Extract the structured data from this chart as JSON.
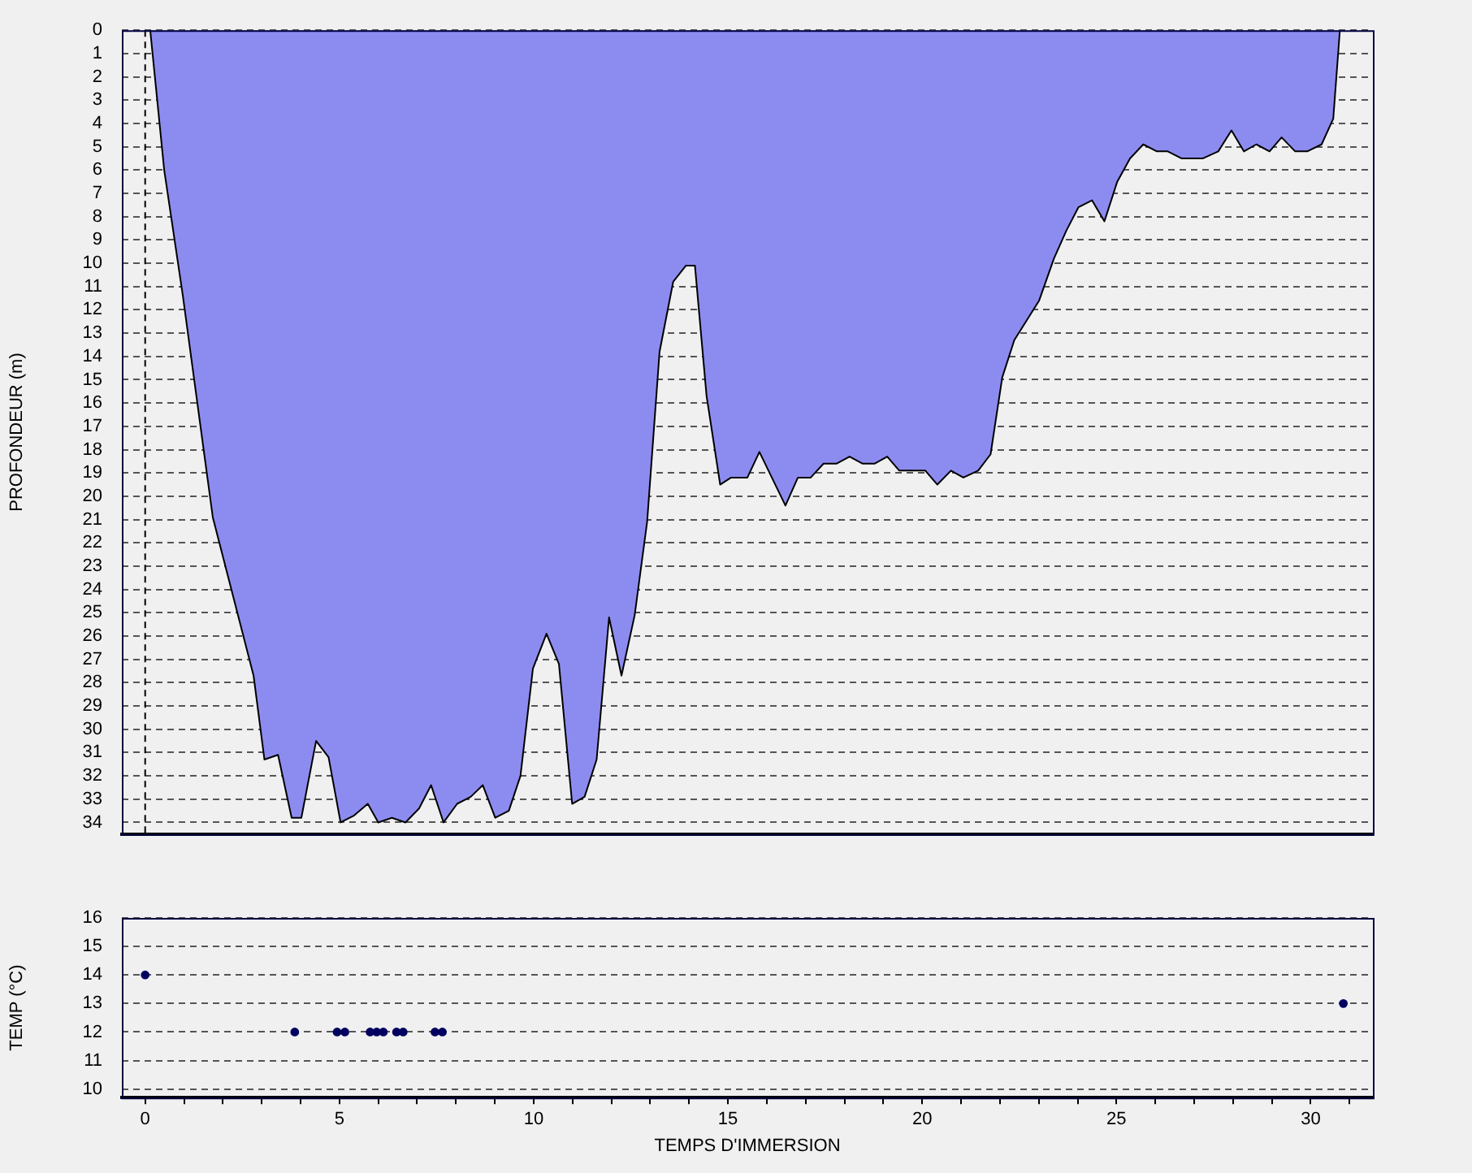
{
  "chart_data": [
    {
      "type": "area",
      "ylabel": "PROFONDEUR (m)",
      "xlim": [
        -0.6,
        31.6
      ],
      "ylim": [
        34.5,
        0
      ],
      "yticks": [
        0,
        1,
        2,
        3,
        4,
        5,
        6,
        7,
        8,
        9,
        10,
        11,
        12,
        13,
        14,
        15,
        16,
        17,
        18,
        19,
        20,
        21,
        22,
        23,
        24,
        25,
        26,
        27,
        28,
        29,
        30,
        31,
        32,
        33,
        34
      ],
      "tick_labels": "y",
      "grid": "y",
      "marker": "none",
      "line_style": "solid",
      "ref_lines": [
        {
          "axis": "x",
          "value": 0,
          "line_style": "dashed",
          "color": "#000000"
        }
      ],
      "series": [
        {
          "color": "#8c8cf0",
          "x": [
            0.13,
            0.49,
            0.97,
            1.74,
            2.79,
            3.07,
            3.42,
            3.77,
            4.02,
            4.4,
            4.72,
            5.03,
            5.38,
            5.73,
            6.0,
            6.35,
            6.7,
            7.05,
            7.36,
            7.68,
            8.03,
            8.38,
            8.69,
            9.01,
            9.36,
            9.66,
            9.98,
            10.33,
            10.65,
            10.99,
            11.31,
            11.62,
            11.94,
            12.26,
            12.6,
            12.92,
            13.24,
            13.59,
            13.92,
            14.15,
            14.45,
            14.8,
            15.08,
            15.5,
            15.81,
            16.48,
            16.8,
            17.13,
            17.46,
            17.8,
            18.13,
            18.46,
            18.78,
            19.1,
            19.41,
            20.08,
            20.39,
            20.74,
            21.06,
            21.44,
            21.76,
            22.06,
            22.37,
            23.01,
            23.39,
            23.71,
            24.02,
            24.37,
            24.69,
            25.02,
            25.35,
            25.69,
            26.04,
            26.32,
            26.67,
            27.23,
            27.62,
            27.96,
            28.28,
            28.6,
            28.94,
            29.25,
            29.6,
            29.91,
            30.28,
            30.58,
            30.75
          ],
          "values": [
            0,
            6,
            11.4,
            20.9,
            27.7,
            31.3,
            31.1,
            33.8,
            33.8,
            30.5,
            31.2,
            34,
            33.7,
            33.2,
            34,
            33.8,
            34,
            33.4,
            32.4,
            34,
            33.2,
            32.9,
            32.4,
            33.8,
            33.5,
            32,
            27.4,
            25.9,
            27.2,
            33.2,
            32.9,
            31.3,
            25.2,
            27.7,
            25.1,
            21.1,
            13.8,
            10.8,
            10.1,
            10.1,
            15.7,
            19.5,
            19.2,
            19.2,
            18.1,
            20.4,
            19.2,
            19.2,
            18.6,
            18.6,
            18.3,
            18.6,
            18.6,
            18.3,
            18.9,
            18.9,
            19.5,
            18.9,
            19.2,
            18.9,
            18.2,
            14.9,
            13.3,
            11.6,
            9.8,
            8.6,
            7.6,
            7.3,
            8.2,
            6.5,
            5.5,
            4.9,
            5.2,
            5.2,
            5.5,
            5.5,
            5.2,
            4.3,
            5.2,
            4.9,
            5.2,
            4.6,
            5.2,
            5.2,
            4.9,
            3.8,
            0
          ]
        }
      ]
    },
    {
      "type": "scatter",
      "ylabel": "TEMP (°C)",
      "xlabel": "TEMPS D'IMMERSION",
      "xlim": [
        -0.6,
        31.6
      ],
      "ylim": [
        9.7,
        16
      ],
      "xticks": [
        0,
        {
          "value": 1,
          "label": null
        },
        {
          "value": 2,
          "label": null
        },
        {
          "value": 3,
          "label": null
        },
        {
          "value": 4,
          "label": null
        },
        5,
        {
          "value": 6,
          "label": null
        },
        {
          "value": 7,
          "label": null
        },
        {
          "value": 8,
          "label": null
        },
        {
          "value": 9,
          "label": null
        },
        10,
        {
          "value": 11,
          "label": null
        },
        {
          "value": 12,
          "label": null
        },
        {
          "value": 13,
          "label": null
        },
        {
          "value": 14,
          "label": null
        },
        15,
        {
          "value": 16,
          "label": null
        },
        {
          "value": 17,
          "label": null
        },
        {
          "value": 18,
          "label": null
        },
        {
          "value": 19,
          "label": null
        },
        20,
        {
          "value": 21,
          "label": null
        },
        {
          "value": 22,
          "label": null
        },
        {
          "value": 23,
          "label": null
        },
        {
          "value": 24,
          "label": null
        },
        25,
        {
          "value": 26,
          "label": null
        },
        {
          "value": 27,
          "label": null
        },
        {
          "value": 28,
          "label": null
        },
        {
          "value": 29,
          "label": null
        },
        30,
        {
          "value": 31,
          "label": null
        }
      ],
      "yticks": [
        10,
        11,
        12,
        13,
        14,
        15,
        16
      ],
      "grid": "y",
      "marker": "circle",
      "series": [
        {
          "color": "#000060",
          "x": [
            0,
            3.85,
            4.94,
            5.14,
            5.79,
            5.96,
            6.13,
            6.47,
            6.64,
            7.46,
            7.65,
            30.84
          ],
          "values": [
            14,
            12,
            12,
            12,
            12,
            12,
            12,
            12,
            12,
            12,
            12,
            13
          ]
        }
      ]
    }
  ]
}
